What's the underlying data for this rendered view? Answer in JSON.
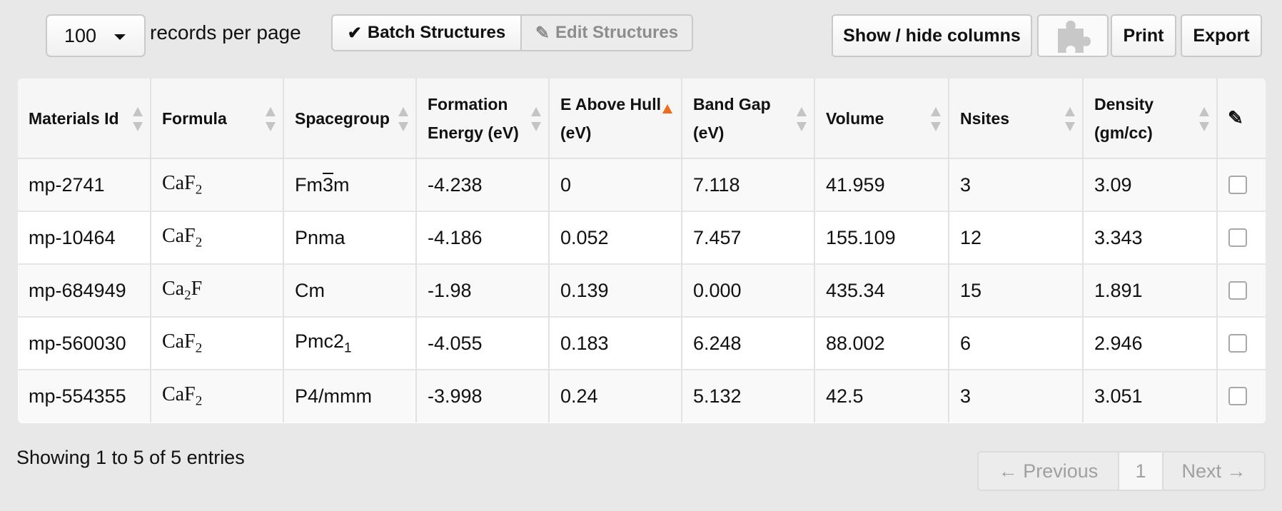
{
  "controls": {
    "page_length_value": "100",
    "page_length_label": "records per page",
    "batch_structures_label": "Batch Structures",
    "edit_structures_label": "Edit Structures",
    "show_hide_columns_label": "Show / hide columns",
    "print_label": "Print",
    "export_label": "Export"
  },
  "table": {
    "columns": [
      {
        "label": "Materials Id",
        "sort": "none"
      },
      {
        "label": "Formula",
        "sort": "none"
      },
      {
        "label": "Spacegroup",
        "sort": "none"
      },
      {
        "label": "Formation Energy (eV)",
        "sort": "none"
      },
      {
        "label": "E Above Hull (eV)",
        "sort": "ascending"
      },
      {
        "label": "Band Gap (eV)",
        "sort": "none"
      },
      {
        "label": "Volume",
        "sort": "none"
      },
      {
        "label": "Nsites",
        "sort": "none"
      },
      {
        "label": "Density (gm/cc)",
        "sort": "none"
      }
    ],
    "edit_column_icon": "pencil-icon",
    "rows": [
      {
        "materials_id": "mp-2741",
        "formula_base": "CaF",
        "formula_sub": "2",
        "spacegroup_pre": "Fm",
        "spacegroup_bar": "3",
        "spacegroup_post": "m",
        "formation_energy": "-4.238",
        "e_above_hull": "0",
        "band_gap": "7.118",
        "volume": "41.959",
        "nsites": "3",
        "density": "3.09"
      },
      {
        "materials_id": "mp-10464",
        "formula_base": "CaF",
        "formula_sub": "2",
        "spacegroup_pre": "Pnma",
        "spacegroup_bar": "",
        "spacegroup_post": "",
        "formation_energy": "-4.186",
        "e_above_hull": "0.052",
        "band_gap": "7.457",
        "volume": "155.109",
        "nsites": "12",
        "density": "3.343"
      },
      {
        "materials_id": "mp-684949",
        "formula_base": "Ca",
        "formula_sub": "2",
        "formula_post": "F",
        "spacegroup_pre": "Cm",
        "spacegroup_bar": "",
        "spacegroup_post": "",
        "formation_energy": "-1.98",
        "e_above_hull": "0.139",
        "band_gap": "0.000",
        "volume": "435.34",
        "nsites": "15",
        "density": "1.891"
      },
      {
        "materials_id": "mp-560030",
        "formula_base": "CaF",
        "formula_sub": "2",
        "spacegroup_pre": "Pmc2",
        "spacegroup_sub": "1",
        "formation_energy": "-4.055",
        "e_above_hull": "0.183",
        "band_gap": "6.248",
        "volume": "88.002",
        "nsites": "6",
        "density": "2.946"
      },
      {
        "materials_id": "mp-554355",
        "formula_base": "CaF",
        "formula_sub": "2",
        "spacegroup_pre": "P4/mmm",
        "spacegroup_bar": "",
        "spacegroup_post": "",
        "formation_energy": "-3.998",
        "e_above_hull": "0.24",
        "band_gap": "5.132",
        "volume": "42.5",
        "nsites": "3",
        "density": "3.051"
      }
    ]
  },
  "footer": {
    "info": "Showing 1 to 5 of 5 entries",
    "prev_label": "← Previous",
    "current_page": "1",
    "next_label": "Next →"
  },
  "colors": {
    "background": "#e8e8e9",
    "sort_active": "#f26a1b",
    "disabled_text": "#8d8d8d"
  }
}
